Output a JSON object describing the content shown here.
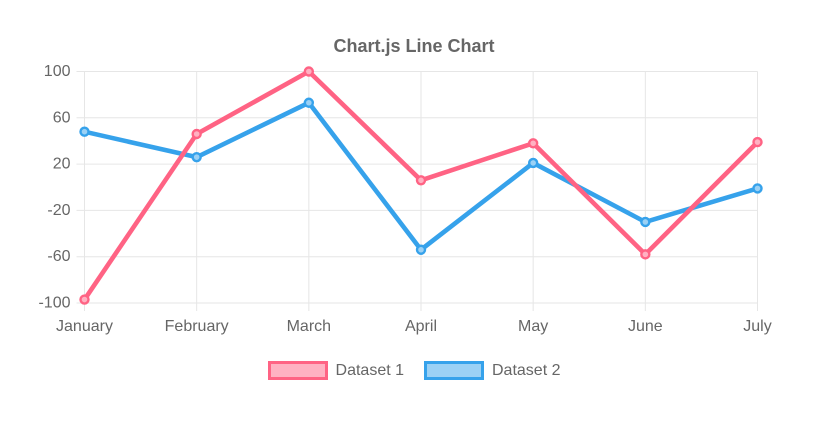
{
  "chart_data": {
    "type": "line",
    "title": "Chart.js Line Chart",
    "categories": [
      "January",
      "February",
      "March",
      "April",
      "May",
      "June",
      "July"
    ],
    "series": [
      {
        "name": "Dataset 1",
        "values": [
          -97,
          46,
          100,
          6,
          38,
          -58,
          39
        ],
        "line_color": "#FF6384",
        "fill_color": "#FFB1C2"
      },
      {
        "name": "Dataset 2",
        "values": [
          48,
          26,
          73,
          -54,
          21,
          -30,
          -1
        ],
        "line_color": "#36A2EB",
        "fill_color": "#9BD1F5"
      }
    ],
    "y_ticks": [
      -100,
      -60,
      -20,
      20,
      60,
      100
    ],
    "ylim": [
      -100,
      100
    ],
    "xlabel": "",
    "ylabel": "",
    "grid": true,
    "legend_position": "bottom",
    "axis_text_color": "#666666",
    "grid_color": "#e6e6e6",
    "background_color": "#ffffff"
  }
}
